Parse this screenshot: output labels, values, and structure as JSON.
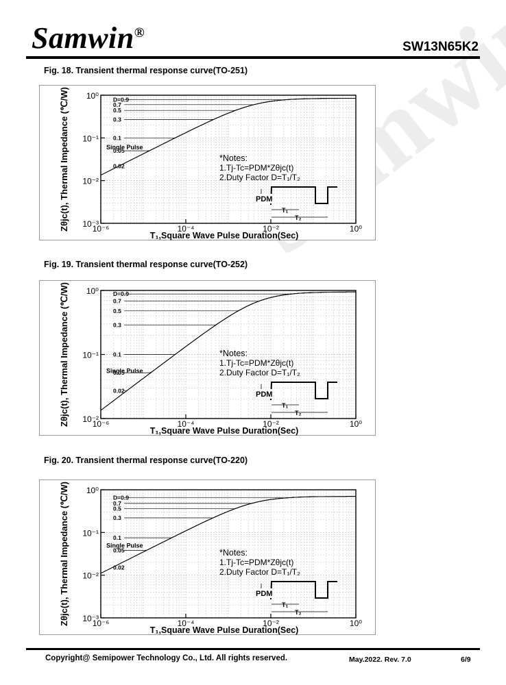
{
  "header": {
    "logo_text": "Samwin",
    "logo_mark": "®",
    "part_number": "SW13N65K2"
  },
  "watermark": "Samwin®",
  "footer": {
    "copyright": "Copyright@ Semipower Technology Co., Ltd. All rights reserved.",
    "revision": "May.2022. Rev. 7.0",
    "page": "6/9"
  },
  "chart_data": [
    {
      "type": "line",
      "title": "Fig. 18. Transient thermal response curve(TO-251)",
      "xlabel": "T₁,Square Wave Pulse Duration(Sec)",
      "ylabel": "Zθjc(t), Thermal Impedance (℃/W)",
      "xscale": "log",
      "yscale": "log",
      "xlim": [
        1e-06,
        1
      ],
      "ylim": [
        0.001,
        1
      ],
      "x_ticks": [
        "10⁻⁶",
        "10⁻⁴",
        "10⁻²",
        "10⁰"
      ],
      "y_ticks": [
        "10⁻³",
        "10⁻²",
        "10⁻¹",
        "10⁰"
      ],
      "grid": true,
      "notes": [
        "*Notes:",
        "1.Tj-Tc=PDM*Zθjc(t)",
        "2.Duty Factor D=T₁/T₂"
      ],
      "pulse_labels": {
        "pdm": "PDM",
        "t1": "T₁",
        "t2": "T₂"
      },
      "steady_state": 0.85,
      "tau": 0.004,
      "series": [
        {
          "name": "D=0.9",
          "floor": 0.78
        },
        {
          "name": "0.7",
          "floor": 0.6
        },
        {
          "name": "0.5",
          "floor": 0.44
        },
        {
          "name": "0.3",
          "floor": 0.27
        },
        {
          "name": "0.1",
          "floor": 0.1
        },
        {
          "name": "0.05",
          "floor": 0.05
        },
        {
          "name": "0.02",
          "floor": 0.022
        },
        {
          "name": "Single Pulse",
          "floor": 0
        }
      ]
    },
    {
      "type": "line",
      "title": "Fig. 19. Transient thermal response curve(TO-252)",
      "xlabel": "T₁,Square Wave Pulse Duration(Sec)",
      "ylabel": "Zθjc(t), Thermal Impedance (℃/W)",
      "xscale": "log",
      "yscale": "log",
      "xlim": [
        1e-06,
        1
      ],
      "ylim": [
        0.01,
        1
      ],
      "x_ticks": [
        "10⁻⁶",
        "10⁻⁴",
        "10⁻²",
        "10⁰"
      ],
      "y_ticks": [
        "10⁻²",
        "10⁻¹",
        "10⁰"
      ],
      "grid": true,
      "notes": [
        "*Notes:",
        "1.Tj-Tc=PDM*Zθjc(t)",
        "2.Duty Factor D=T₁/T₂"
      ],
      "pulse_labels": {
        "pdm": "PDM",
        "t1": "T₁",
        "t2": "T₂"
      },
      "steady_state": 0.95,
      "tau": 0.005,
      "series": [
        {
          "name": "D=0.9",
          "floor": 0.88
        },
        {
          "name": "0.7",
          "floor": 0.68
        },
        {
          "name": "0.5",
          "floor": 0.48
        },
        {
          "name": "0.3",
          "floor": 0.29
        },
        {
          "name": "0.1",
          "floor": 0.1
        },
        {
          "name": "0.05",
          "floor": 0.052
        },
        {
          "name": "0.02",
          "floor": 0.027
        },
        {
          "name": "Single Pulse",
          "floor": 0
        }
      ]
    },
    {
      "type": "line",
      "title": "Fig. 20. Transient thermal response curve(TO-220)",
      "xlabel": "T₁,Square Wave Pulse Duration(Sec)",
      "ylabel": "Zθjc(t), Thermal Impedance (℃/W)",
      "xscale": "log",
      "yscale": "log",
      "xlim": [
        1e-06,
        1
      ],
      "ylim": [
        0.001,
        1
      ],
      "x_ticks": [
        "10⁻⁶",
        "10⁻⁴",
        "10⁻²",
        "10⁰"
      ],
      "y_ticks": [
        "10⁻³",
        "10⁻²",
        "10⁻¹",
        "10⁰"
      ],
      "grid": true,
      "notes": [
        "*Notes:",
        "1.Tj-Tc=PDM*Zθjc(t)",
        "2.Duty Factor D=T₁/T₂"
      ],
      "pulse_labels": {
        "pdm": "PDM",
        "t1": "T₁",
        "t2": "T₂"
      },
      "steady_state": 0.7,
      "tau": 0.004,
      "series": [
        {
          "name": "D=0.9",
          "floor": 0.65
        },
        {
          "name": "0.7",
          "floor": 0.48
        },
        {
          "name": "0.5",
          "floor": 0.36
        },
        {
          "name": "0.3",
          "floor": 0.22
        },
        {
          "name": "0.1",
          "floor": 0.075
        },
        {
          "name": "0.05",
          "floor": 0.038
        },
        {
          "name": "0.02",
          "floor": 0.015
        },
        {
          "name": "Single Pulse",
          "floor": 0
        }
      ]
    }
  ]
}
